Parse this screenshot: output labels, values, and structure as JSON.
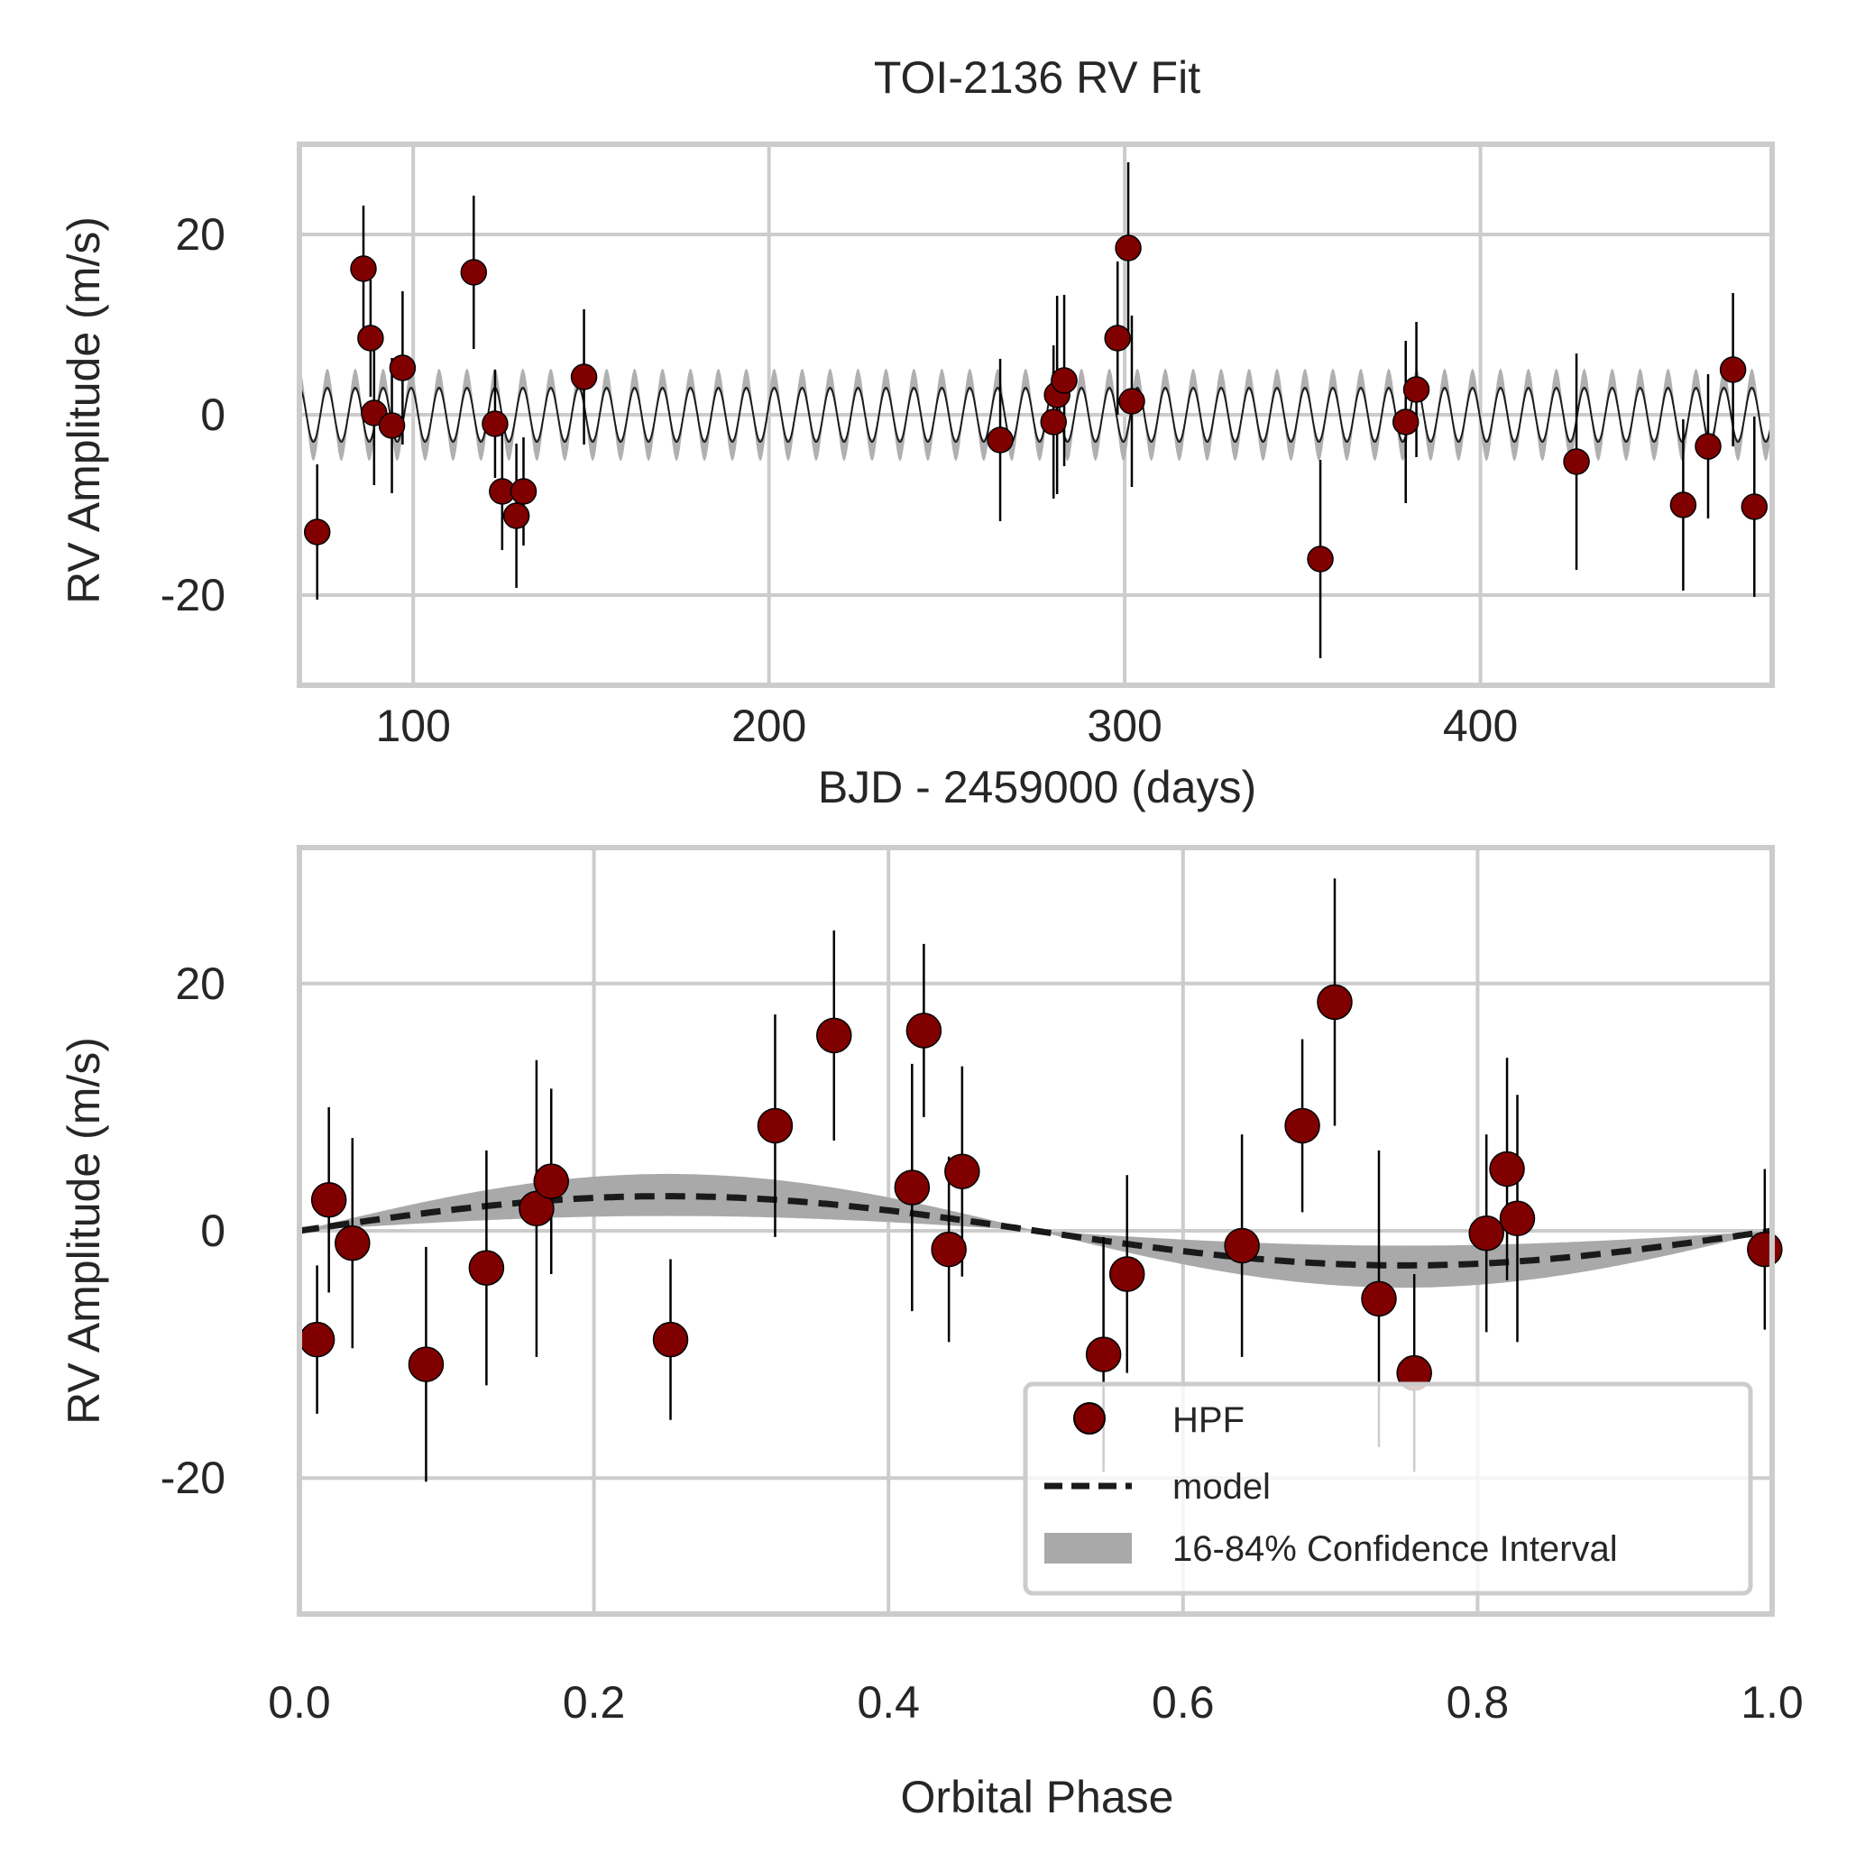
{
  "chart_data": [
    {
      "type": "scatter",
      "title": "TOI-2136 RV Fit",
      "xlabel": "BJD - 2459000 (days)",
      "ylabel": "RV Amplitude (m/s)",
      "xlim": [
        68,
        482
      ],
      "ylim": [
        -30,
        30
      ],
      "xticks": [
        100,
        200,
        300,
        400
      ],
      "yticks": [
        20,
        0,
        -20
      ],
      "grid": true,
      "model": {
        "period_days": 7.852,
        "amplitude": 3.0,
        "band_half_width": 1.8,
        "curve_color": "#1a1a1a",
        "band_color": "#b0b0b0"
      },
      "series": [
        {
          "marker_color": "#800000",
          "points": [
            {
              "x": 73,
              "y": -13.0,
              "err": 7.5
            },
            {
              "x": 86,
              "y": 16.2,
              "err": 7.0
            },
            {
              "x": 88,
              "y": 8.5,
              "err": 6.5
            },
            {
              "x": 89,
              "y": 0.2,
              "err": 8.0
            },
            {
              "x": 94,
              "y": -1.2,
              "err": 7.5
            },
            {
              "x": 97,
              "y": 5.2,
              "err": 8.5
            },
            {
              "x": 117,
              "y": 15.8,
              "err": 8.5
            },
            {
              "x": 123,
              "y": -1.0,
              "err": 6.0
            },
            {
              "x": 125,
              "y": -8.5,
              "err": 6.5
            },
            {
              "x": 129,
              "y": -11.2,
              "err": 8.0
            },
            {
              "x": 131,
              "y": -8.5,
              "err": 6.0
            },
            {
              "x": 148,
              "y": 4.2,
              "err": 7.5
            },
            {
              "x": 265,
              "y": -2.8,
              "err": 9.0
            },
            {
              "x": 280,
              "y": -0.8,
              "err": 8.5
            },
            {
              "x": 281,
              "y": 2.2,
              "err": 11.0
            },
            {
              "x": 283,
              "y": 3.8,
              "err": 9.5
            },
            {
              "x": 298,
              "y": 8.5,
              "err": 8.5
            },
            {
              "x": 301,
              "y": 18.5,
              "err": 9.5
            },
            {
              "x": 302,
              "y": 1.5,
              "err": 9.5
            },
            {
              "x": 355,
              "y": -16.0,
              "err": 11.0
            },
            {
              "x": 379,
              "y": -0.8,
              "err": 9.0
            },
            {
              "x": 382,
              "y": 2.8,
              "err": 7.5
            },
            {
              "x": 427,
              "y": -5.2,
              "err": 12.0
            },
            {
              "x": 457,
              "y": -10.0,
              "err": 9.5
            },
            {
              "x": 464,
              "y": -3.5,
              "err": 8.0
            },
            {
              "x": 471,
              "y": 5.0,
              "err": 8.5
            },
            {
              "x": 477,
              "y": -10.2,
              "err": 10.0
            }
          ]
        }
      ]
    },
    {
      "type": "scatter",
      "title": "",
      "xlabel": "Orbital Phase",
      "ylabel": "RV Amplitude (m/s)",
      "xlim": [
        0.0,
        1.0
      ],
      "ylim": [
        -31,
        31
      ],
      "xticks": [
        0.0,
        0.2,
        0.4,
        0.6,
        0.8,
        1.0
      ],
      "yticks": [
        20,
        0,
        -20
      ],
      "grid": true,
      "model": {
        "amplitude": 2.8,
        "band_amplitude_low": 1.2,
        "band_amplitude_high": 4.6,
        "line_color": "#1a1a1a",
        "band_color": "#a9a9a9"
      },
      "legend": {
        "placement": "lower-right",
        "entries": [
          "HPF",
          "model",
          "16-84% Confidence Interval"
        ]
      },
      "series": [
        {
          "name": "HPF",
          "marker_color": "#800000",
          "points": [
            {
              "x": 0.012,
              "y": -8.8,
              "err": 6.0
            },
            {
              "x": 0.02,
              "y": 2.5,
              "err": 7.5
            },
            {
              "x": 0.036,
              "y": -1.0,
              "err": 8.5
            },
            {
              "x": 0.086,
              "y": -10.8,
              "err": 9.5
            },
            {
              "x": 0.127,
              "y": -3.0,
              "err": 9.5
            },
            {
              "x": 0.161,
              "y": 1.8,
              "err": 12.0
            },
            {
              "x": 0.171,
              "y": 4.0,
              "err": 7.5
            },
            {
              "x": 0.252,
              "y": -8.8,
              "err": 6.5
            },
            {
              "x": 0.323,
              "y": 8.5,
              "err": 9.0
            },
            {
              "x": 0.363,
              "y": 15.8,
              "err": 8.5
            },
            {
              "x": 0.416,
              "y": 3.5,
              "err": 10.0
            },
            {
              "x": 0.424,
              "y": 16.2,
              "err": 7.0
            },
            {
              "x": 0.441,
              "y": -1.5,
              "err": 7.5
            },
            {
              "x": 0.45,
              "y": 4.8,
              "err": 8.5
            },
            {
              "x": 0.546,
              "y": -10.0,
              "err": 9.5
            },
            {
              "x": 0.562,
              "y": -3.5,
              "err": 8.0
            },
            {
              "x": 0.64,
              "y": -1.2,
              "err": 9.0
            },
            {
              "x": 0.681,
              "y": 8.5,
              "err": 7.0
            },
            {
              "x": 0.703,
              "y": 18.5,
              "err": 10.0
            },
            {
              "x": 0.733,
              "y": -5.5,
              "err": 12.0
            },
            {
              "x": 0.757,
              "y": -11.5,
              "err": 8.0
            },
            {
              "x": 0.806,
              "y": -0.2,
              "err": 8.0
            },
            {
              "x": 0.82,
              "y": 5.0,
              "err": 9.0
            },
            {
              "x": 0.827,
              "y": 1.0,
              "err": 10.0
            },
            {
              "x": 0.995,
              "y": -1.5,
              "err": 6.5
            }
          ]
        }
      ]
    }
  ]
}
